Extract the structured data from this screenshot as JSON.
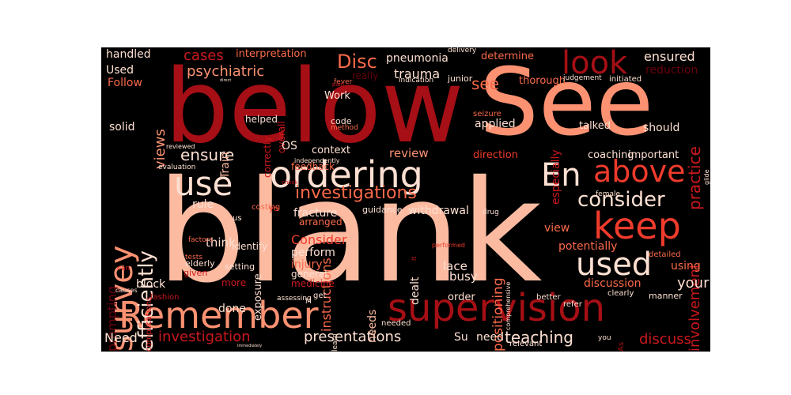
{
  "words": [
    "below",
    "See",
    "blank",
    "ordering",
    "supervision",
    "Remember",
    "survey",
    "look",
    "above",
    "keep",
    "use",
    "used",
    "En",
    "investigations",
    "consider",
    "efficiently",
    "ensure",
    "Disc",
    "see",
    "trauma",
    "psychiatric",
    "views",
    "cases",
    "review",
    "presentations",
    "investigation",
    "teaching",
    "discuss",
    "positioning",
    "instructions",
    "practice",
    "involvement",
    "potentially",
    "Consider",
    "withdrawal",
    "fracture",
    "exposure",
    "prompting",
    "Need",
    "pneumonia",
    "determine",
    "interpretation",
    "handled",
    "ensured",
    "reduction",
    "Used",
    "Follow",
    "solid",
    "Train",
    "helped",
    "correctly",
    "overall",
    "Work",
    "code",
    "really",
    "applied",
    "especially",
    "talked",
    "should",
    "coaching",
    "important",
    "direction",
    "context",
    "OS",
    "feedback",
    "arranged",
    "rule",
    "think",
    "block",
    "perform",
    "injury",
    "lace",
    "busy",
    "your",
    "discussion",
    "using",
    "view",
    "guidance",
    "dealt",
    "order",
    "needs",
    "done",
    "more",
    "setting",
    "identify",
    "general",
    "medicine",
    "elderly",
    "given",
    "fashion",
    "causes",
    "learn",
    "needed",
    "refer",
    "Su",
    "need",
    "relevant",
    "you",
    "better",
    "clearly",
    "manner",
    "detailed",
    "female",
    "drug",
    "comprehensive",
    "delivery",
    "indication",
    "junior",
    "thorough",
    "judgement",
    "initiated",
    "fever",
    "method",
    "seizure",
    "glide",
    "evaluation",
    "reviewed",
    "independently",
    "costing",
    "check",
    "us",
    "factors",
    "tests",
    "complications",
    "can",
    "yo",
    "assessing",
    "get",
    "performed",
    "immediately",
    "direct",
    "pain",
    "M",
    "As",
    "lt"
  ],
  "colors": [
    "#67000d",
    "#a50f15",
    "#cb181d",
    "#ef3b2c",
    "#fb6a4a",
    "#fc9272",
    "#fcbba1",
    "#fee0d2",
    "#fff5f0"
  ]
}
